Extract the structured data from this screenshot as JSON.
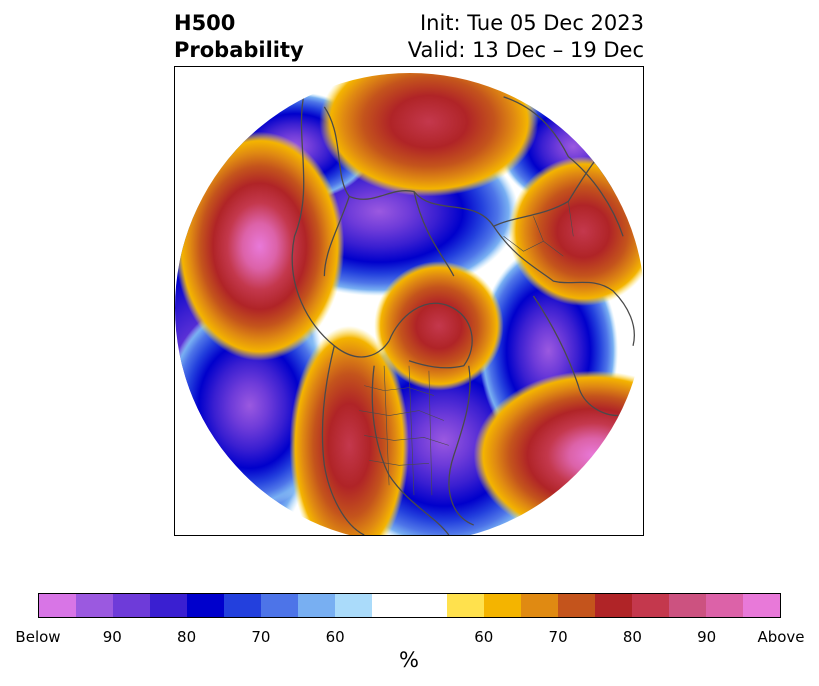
{
  "header": {
    "variable": "H500",
    "product": "Probability",
    "init": "Init: Tue 05 Dec 2023",
    "valid": "Valid: 13 Dec – 19 Dec"
  },
  "colorbar": {
    "unit": "%",
    "colors": [
      "#d875e6",
      "#9b59e0",
      "#6e3bd9",
      "#3a1fd1",
      "#0000cc",
      "#2340dd",
      "#4d74e8",
      "#78aff2",
      "#aadbfa",
      "#ffffff",
      "#ffffff",
      "#ffe14d",
      "#f4b400",
      "#e08a12",
      "#c4541c",
      "#b02427",
      "#c4384d",
      "#cc5280",
      "#dc62a8",
      "#e879d9"
    ],
    "ticks": [
      "Below",
      "90",
      "80",
      "70",
      "60",
      "60",
      "70",
      "80",
      "90",
      "Above"
    ]
  },
  "map": {
    "projection": "north-polar-stereographic",
    "outline_color": "#4a4a4a"
  }
}
